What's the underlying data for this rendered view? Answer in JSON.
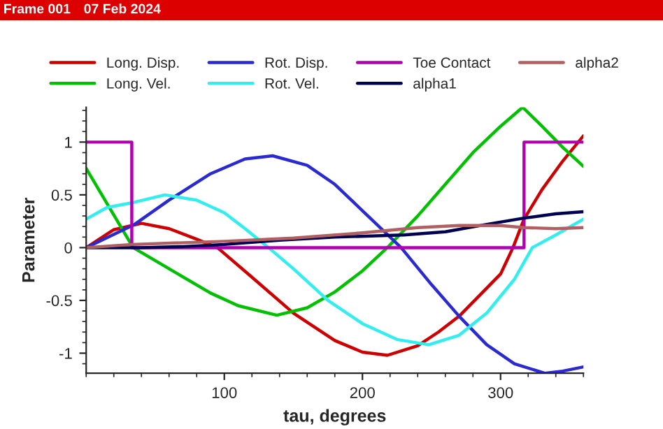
{
  "chart_data": {
    "type": "line",
    "xlabel": "tau, degrees",
    "ylabel": "Parameter",
    "annotations": [
      "Frame 001",
      "07 Feb 2024"
    ],
    "xlim": [
      0,
      360
    ],
    "xticks": [
      100,
      200,
      300
    ],
    "ylim": [
      -1.19,
      1.33
    ],
    "yticks": [
      -1,
      -0.5,
      0,
      0.5,
      1
    ],
    "grid": false,
    "legend": "top",
    "marker": "none",
    "line_style": "solid",
    "series": [
      {
        "name": "Long. Disp.",
        "color": "#cc0000",
        "x": [
          0,
          20,
          40,
          60,
          80,
          95,
          120,
          150,
          180,
          200,
          218,
          240,
          255,
          270,
          285,
          300,
          309,
          317,
          330,
          345,
          360
        ],
        "values": [
          0,
          0.17,
          0.23,
          0.18,
          0.08,
          0,
          -0.28,
          -0.62,
          -0.88,
          -0.99,
          -1.02,
          -0.93,
          -0.8,
          -0.65,
          -0.45,
          -0.25,
          0,
          0.27,
          0.55,
          0.82,
          1.06
        ]
      },
      {
        "name": "Long. Vel.",
        "color": "#00c000",
        "x": [
          0,
          34,
          60,
          90,
          110,
          138,
          160,
          180,
          200,
          218,
          240,
          260,
          280,
          300,
          316,
          330,
          345,
          360
        ],
        "values": [
          0.75,
          0,
          -0.2,
          -0.43,
          -0.55,
          -0.64,
          -0.57,
          -0.42,
          -0.22,
          0,
          0.3,
          0.6,
          0.9,
          1.15,
          1.33,
          1.15,
          0.95,
          0.77
        ]
      },
      {
        "name": "Rot. Disp.",
        "color": "#2a2ad0",
        "x": [
          0,
          35,
          60,
          90,
          115,
          135,
          160,
          180,
          200,
          228,
          250,
          270,
          290,
          310,
          332,
          345,
          360
        ],
        "values": [
          0,
          0.22,
          0.45,
          0.7,
          0.84,
          0.87,
          0.78,
          0.6,
          0.35,
          0,
          -0.35,
          -0.65,
          -0.92,
          -1.1,
          -1.19,
          -1.17,
          -1.13
        ]
      },
      {
        "name": "Rot. Vel.",
        "color": "#33eeee",
        "x": [
          0,
          15,
          35,
          57,
          80,
          100,
          115,
          132,
          150,
          175,
          200,
          225,
          248,
          270,
          290,
          310,
          323,
          340,
          360
        ],
        "values": [
          0.27,
          0.38,
          0.43,
          0.5,
          0.45,
          0.33,
          0.18,
          0,
          -0.2,
          -0.5,
          -0.72,
          -0.87,
          -0.92,
          -0.83,
          -0.62,
          -0.3,
          0,
          0.12,
          0.27
        ]
      },
      {
        "name": "Toe Contact",
        "color": "#b000b0",
        "x": [
          0,
          33,
          33,
          317,
          317,
          360
        ],
        "values": [
          1,
          1,
          0,
          0,
          1,
          1
        ]
      },
      {
        "name": "alpha1",
        "color": "#000050",
        "x": [
          0,
          40,
          70,
          100,
          140,
          180,
          230,
          260,
          290,
          317,
          340,
          360
        ],
        "values": [
          0,
          0,
          0.01,
          0.03,
          0.07,
          0.1,
          0.12,
          0.15,
          0.22,
          0.28,
          0.32,
          0.34
        ]
      },
      {
        "name": "alpha2",
        "color": "#b06060",
        "x": [
          0,
          33,
          100,
          150,
          200,
          240,
          270,
          300,
          317,
          340,
          360
        ],
        "values": [
          0,
          0.03,
          0.06,
          0.09,
          0.14,
          0.19,
          0.21,
          0.21,
          0.19,
          0.18,
          0.19
        ]
      }
    ]
  }
}
